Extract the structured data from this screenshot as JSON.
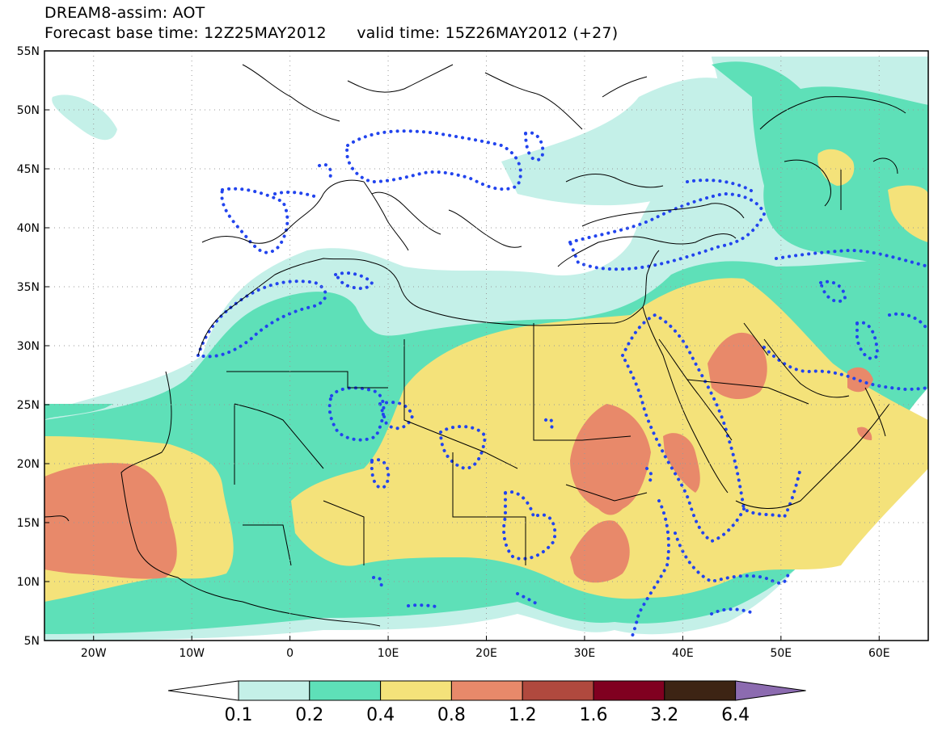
{
  "header": {
    "title_line1": "DREAM8-assim: AOT",
    "title_line2": "Forecast base time: 12Z25MAY2012      valid time: 15Z26MAY2012 (+27)"
  },
  "map": {
    "lon_range": [
      -25,
      65
    ],
    "lat_range": [
      5,
      55
    ],
    "lat_labels": [
      "55N",
      "50N",
      "45N",
      "40N",
      "35N",
      "30N",
      "25N",
      "20N",
      "15N",
      "10N",
      "5N"
    ],
    "lon_labels": [
      "20W",
      "10W",
      "0",
      "10E",
      "20E",
      "30E",
      "40E",
      "50E",
      "60E"
    ]
  },
  "colorbar": {
    "labels": [
      "0.1",
      "0.2",
      "0.4",
      "0.8",
      "1.2",
      "1.6",
      "3.2",
      "6.4"
    ],
    "colors": [
      "#ffffff",
      "#c4f0e8",
      "#5ee0b8",
      "#f4e27a",
      "#e8896a",
      "#b0493e",
      "#800020",
      "#3d2414",
      "#8c6bb0"
    ]
  },
  "palette": {
    "aot_0_1_0_2": "#c4f0e8",
    "aot_0_2_0_4": "#5ee0b8",
    "aot_0_4_0_8": "#f4e27a",
    "aot_0_8_1_2": "#e8896a",
    "coast": "#000000",
    "obs_contour": "#2244ee"
  }
}
